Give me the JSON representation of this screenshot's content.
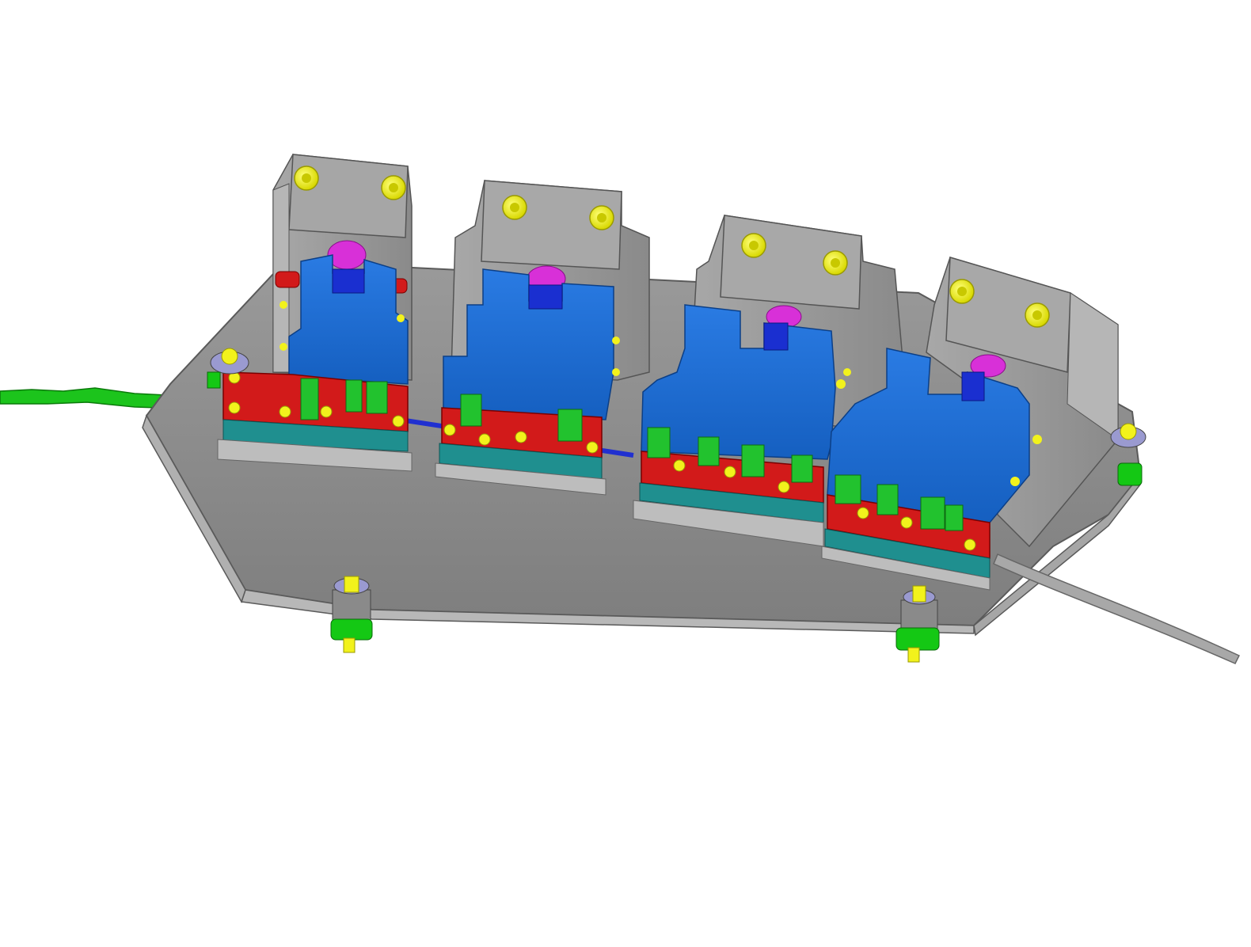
{
  "scene": {
    "background": "#ffffff",
    "colors": {
      "base_plate": "#8e8e8e",
      "base_edge": "#b4b4b4",
      "housing": "#9c9c9c",
      "housing_light": "#bdbdbd",
      "clamp_blue": "#1f6fd6",
      "clamp_blue_dark": "#1558b0",
      "rail_red": "#d21a1a",
      "pad_green": "#22c22e",
      "pad_teal": "#1f8f8f",
      "bolt_yellow": "#f2f21c",
      "knob_magenta": "#d830d8",
      "knob_blue": "#1a2fd0",
      "foot_green": "#14c814",
      "strip_green": "#1cc41c",
      "cable_gray": "#9a9a9a"
    },
    "stations": [
      {
        "id": "station-1"
      },
      {
        "id": "station-2"
      },
      {
        "id": "station-3"
      },
      {
        "id": "station-4"
      }
    ]
  }
}
